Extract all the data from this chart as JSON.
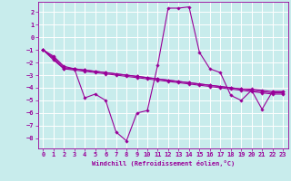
{
  "xlabel": "Windchill (Refroidissement éolien,°C)",
  "bg_color": "#c8ecec",
  "line_color": "#990099",
  "grid_color": "#ffffff",
  "xlim": [
    -0.5,
    23.5
  ],
  "ylim": [
    -8.8,
    2.8
  ],
  "yticks": [
    2,
    1,
    0,
    -1,
    -2,
    -3,
    -4,
    -5,
    -6,
    -7,
    -8
  ],
  "xticks": [
    0,
    1,
    2,
    3,
    4,
    5,
    6,
    7,
    8,
    9,
    10,
    11,
    12,
    13,
    14,
    15,
    16,
    17,
    18,
    19,
    20,
    21,
    22,
    23
  ],
  "series": [
    [
      -1.0,
      -1.5,
      -2.3,
      -2.5,
      -4.8,
      -4.5,
      -5.0,
      -7.5,
      -8.2,
      -6.0,
      -5.8,
      -2.2,
      2.3,
      2.3,
      2.4,
      -1.2,
      -2.5,
      -2.8,
      -4.6,
      -5.0,
      -4.2,
      -5.7,
      -4.3,
      -4.3
    ],
    [
      -1.0,
      -1.7,
      -2.5,
      -2.5,
      -2.6,
      -2.7,
      -2.8,
      -2.9,
      -3.0,
      -3.1,
      -3.2,
      -3.3,
      -3.4,
      -3.5,
      -3.6,
      -3.7,
      -3.8,
      -3.9,
      -4.0,
      -4.1,
      -4.2,
      -4.3,
      -4.4,
      -4.4
    ],
    [
      -1.0,
      -1.8,
      -2.5,
      -2.6,
      -2.7,
      -2.8,
      -2.9,
      -3.0,
      -3.1,
      -3.2,
      -3.3,
      -3.4,
      -3.5,
      -3.6,
      -3.7,
      -3.8,
      -3.9,
      -4.0,
      -4.1,
      -4.2,
      -4.3,
      -4.4,
      -4.5,
      -4.5
    ],
    [
      -1.0,
      -1.6,
      -2.4,
      -2.5,
      -2.6,
      -2.7,
      -2.8,
      -2.9,
      -3.0,
      -3.1,
      -3.2,
      -3.3,
      -3.4,
      -3.5,
      -3.6,
      -3.7,
      -3.8,
      -3.9,
      -4.0,
      -4.1,
      -4.1,
      -4.2,
      -4.3,
      -4.3
    ]
  ]
}
